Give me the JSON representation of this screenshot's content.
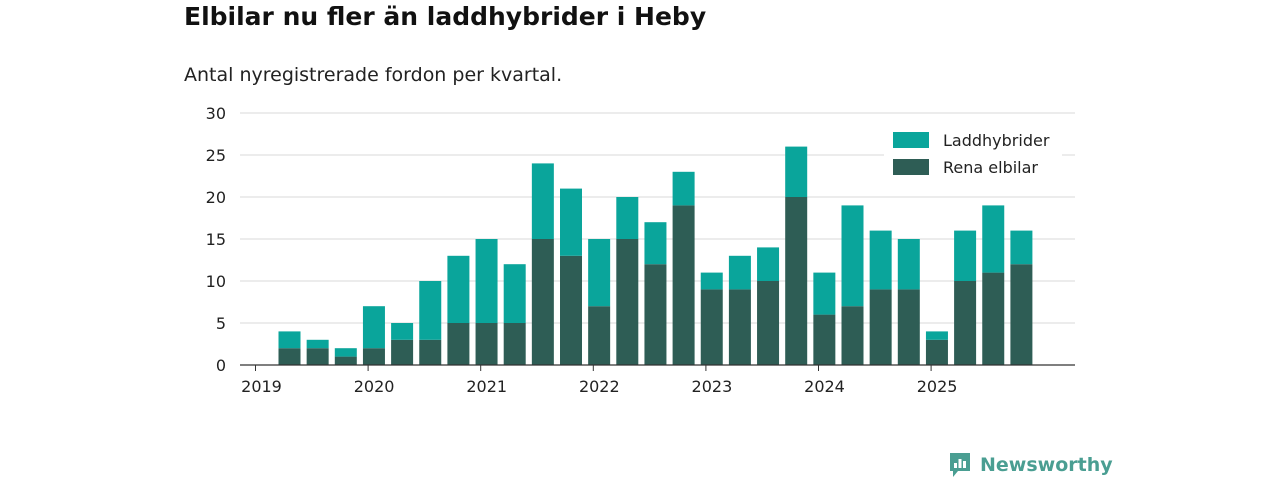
{
  "title": "Elbilar nu fler än laddhybrider i Heby",
  "subtitle": "Antal nyregistrerade fordon per kvartal.",
  "brand": "Newsworthy",
  "colors": {
    "laddhybrider": "#0aa59b",
    "rena_elbilar": "#2e5d55",
    "grid": "#d9d9d9",
    "axis": "#333333",
    "brand": "#4a9e92"
  },
  "chart_data": {
    "type": "bar",
    "stacked": true,
    "title": "Elbilar nu fler än laddhybrider i Heby",
    "subtitle": "Antal nyregistrerade fordon per kvartal.",
    "xlabel": "",
    "ylabel": "",
    "ylim": [
      0,
      30
    ],
    "yticks": [
      "0",
      "5",
      "10",
      "15",
      "20",
      "25",
      "30"
    ],
    "xtick_labels": [
      "2019",
      "2020",
      "2021",
      "2022",
      "2023",
      "2024",
      "2025"
    ],
    "legend_position": "top-right",
    "categories": [
      "2019Q2",
      "2019Q3",
      "2019Q4",
      "2020Q1",
      "2020Q2",
      "2020Q3",
      "2020Q4",
      "2021Q1",
      "2021Q2",
      "2021Q3",
      "2021Q4",
      "2022Q1",
      "2022Q2",
      "2022Q3",
      "2022Q4",
      "2023Q1",
      "2023Q2",
      "2023Q3",
      "2023Q4",
      "2024Q1",
      "2024Q2",
      "2024Q3",
      "2024Q4",
      "2025Q1",
      "2025Q2",
      "2025Q3",
      "2025Q4"
    ],
    "series": [
      {
        "name": "Rena elbilar",
        "values": [
          2,
          2,
          1,
          2,
          3,
          3,
          5,
          5,
          5,
          15,
          13,
          7,
          15,
          12,
          19,
          9,
          9,
          10,
          20,
          6,
          7,
          9,
          9,
          3,
          10,
          11,
          12
        ]
      },
      {
        "name": "Laddhybrider",
        "values": [
          2,
          1,
          1,
          5,
          2,
          7,
          8,
          10,
          7,
          9,
          8,
          8,
          5,
          5,
          4,
          2,
          4,
          4,
          6,
          5,
          12,
          7,
          6,
          1,
          6,
          8,
          4
        ]
      }
    ]
  }
}
